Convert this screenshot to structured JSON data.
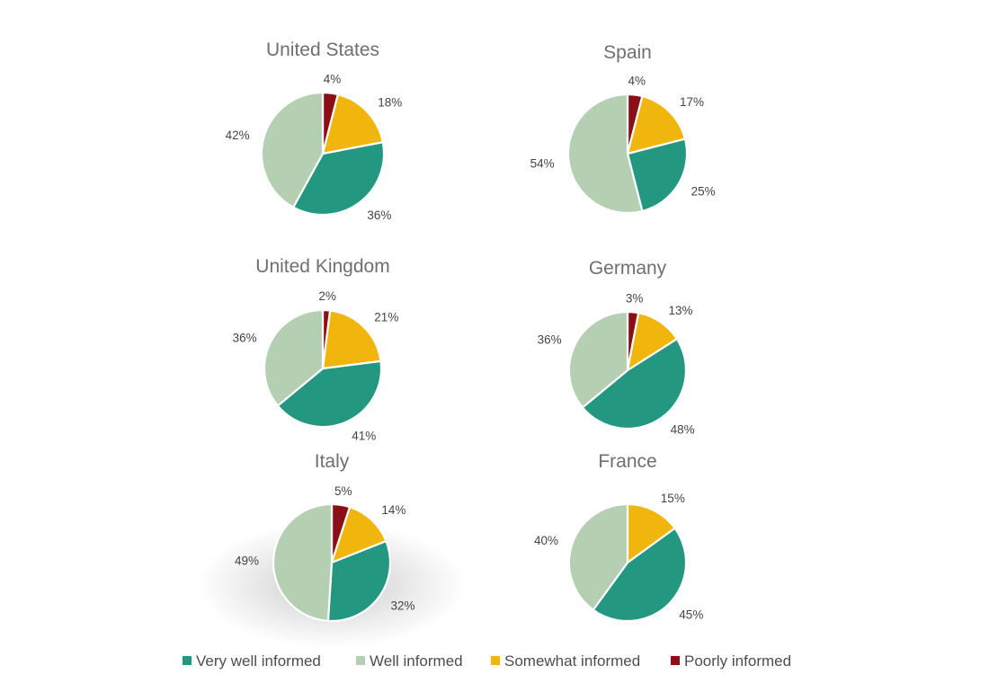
{
  "colors": {
    "very_well": "#23977f",
    "well": "#b4cfb1",
    "somewhat": "#f0b60e",
    "poorly": "#8b0f16"
  },
  "chart_data": [
    {
      "type": "pie",
      "title": "United States",
      "slices": [
        {
          "label": "Poorly informed",
          "value": 4,
          "text": "4%"
        },
        {
          "label": "Somewhat informed",
          "value": 18,
          "text": "18%"
        },
        {
          "label": "Very well informed",
          "value": 36,
          "text": "36%"
        },
        {
          "label": "Well informed",
          "value": 42,
          "text": "42%"
        }
      ]
    },
    {
      "type": "pie",
      "title": "Spain",
      "slices": [
        {
          "label": "Poorly informed",
          "value": 4,
          "text": "4%"
        },
        {
          "label": "Somewhat informed",
          "value": 17,
          "text": "17%"
        },
        {
          "label": "Very well informed",
          "value": 25,
          "text": "25%"
        },
        {
          "label": "Well informed",
          "value": 54,
          "text": "54%"
        }
      ]
    },
    {
      "type": "pie",
      "title": "United Kingdom",
      "slices": [
        {
          "label": "Poorly informed",
          "value": 2,
          "text": "2%"
        },
        {
          "label": "Somewhat informed",
          "value": 21,
          "text": "21%"
        },
        {
          "label": "Very well informed",
          "value": 41,
          "text": "41%"
        },
        {
          "label": "Well informed",
          "value": 36,
          "text": "36%"
        }
      ]
    },
    {
      "type": "pie",
      "title": "Germany",
      "slices": [
        {
          "label": "Poorly informed",
          "value": 3,
          "text": "3%"
        },
        {
          "label": "Somewhat informed",
          "value": 13,
          "text": "13%"
        },
        {
          "label": "Very well informed",
          "value": 48,
          "text": "48%"
        },
        {
          "label": "Well informed",
          "value": 36,
          "text": "36%"
        }
      ]
    },
    {
      "type": "pie",
      "title": "Italy",
      "slices": [
        {
          "label": "Poorly informed",
          "value": 5,
          "text": "5%"
        },
        {
          "label": "Somewhat informed",
          "value": 14,
          "text": "14%"
        },
        {
          "label": "Very well informed",
          "value": 32,
          "text": "32%"
        },
        {
          "label": "Well informed",
          "value": 49,
          "text": "49%"
        }
      ]
    },
    {
      "type": "pie",
      "title": "France",
      "slices": [
        {
          "label": "Poorly informed",
          "value": 0,
          "text": ""
        },
        {
          "label": "Somewhat informed",
          "value": 15,
          "text": "15%"
        },
        {
          "label": "Very well informed",
          "value": 45,
          "text": "45%"
        },
        {
          "label": "Well informed",
          "value": 40,
          "text": "40%"
        }
      ]
    }
  ],
  "legend": {
    "placement": "bottom",
    "items": [
      {
        "label": "Very well informed",
        "color": "#23977f"
      },
      {
        "label": "Well informed",
        "color": "#b4cfb1"
      },
      {
        "label": "Somewhat informed",
        "color": "#f0b60e"
      },
      {
        "label": "Poorly informed",
        "color": "#8b0f16"
      }
    ]
  }
}
